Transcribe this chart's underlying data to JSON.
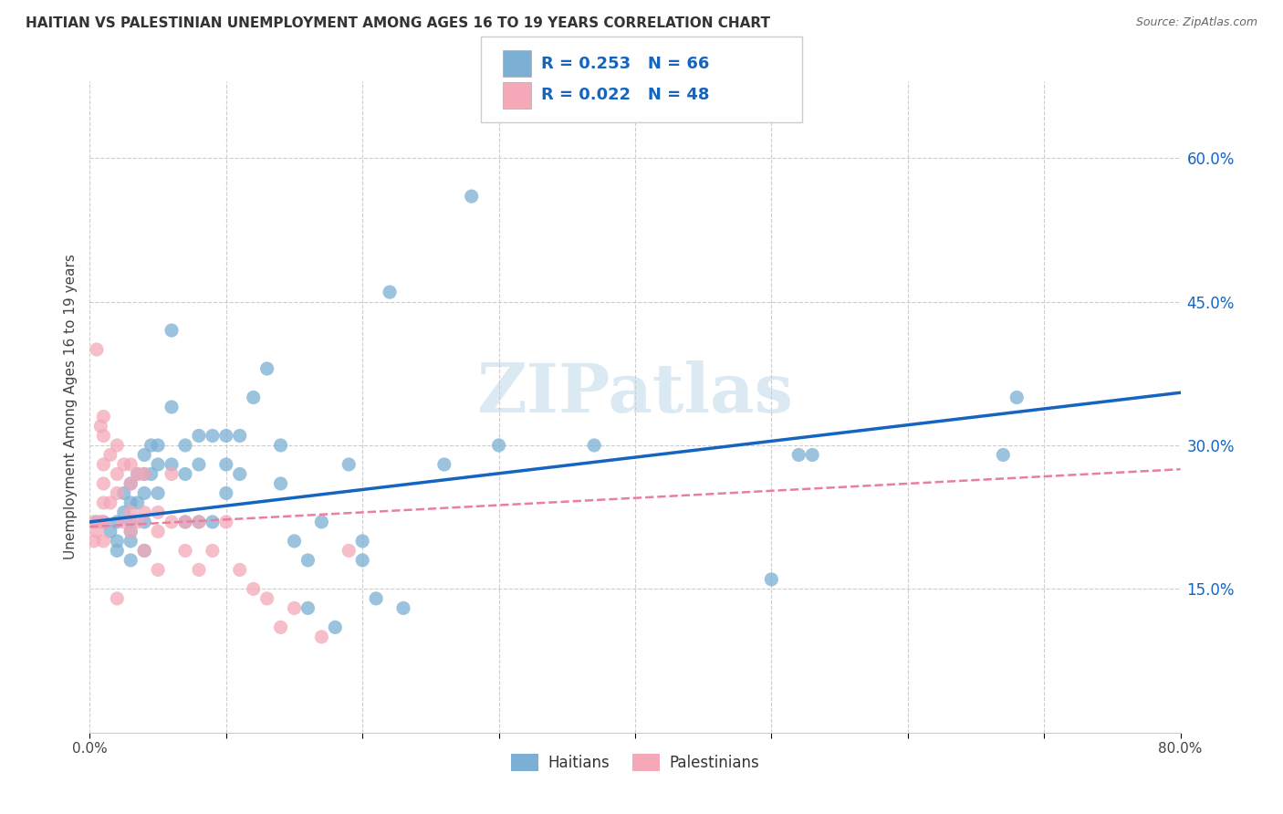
{
  "title": "HAITIAN VS PALESTINIAN UNEMPLOYMENT AMONG AGES 16 TO 19 YEARS CORRELATION CHART",
  "source": "Source: ZipAtlas.com",
  "ylabel": "Unemployment Among Ages 16 to 19 years",
  "xlim": [
    0.0,
    0.8
  ],
  "ylim": [
    0.0,
    0.68
  ],
  "xticks": [
    0.0,
    0.1,
    0.2,
    0.3,
    0.4,
    0.5,
    0.6,
    0.7,
    0.8
  ],
  "ytick_positions": [
    0.15,
    0.3,
    0.45,
    0.6
  ],
  "ytick_labels": [
    "15.0%",
    "30.0%",
    "45.0%",
    "60.0%"
  ],
  "haitians_color": "#7bafd4",
  "haitians_edge": "#5a9cc5",
  "palestinians_color": "#f4a8b8",
  "palestinians_edge": "#e07090",
  "haitians_line_color": "#1565c0",
  "palestinians_line_color": "#e87fa0",
  "haitians_R": 0.253,
  "haitians_N": 66,
  "palestinians_R": 0.022,
  "palestinians_N": 48,
  "watermark": "ZIPatlas",
  "background_color": "#ffffff",
  "grid_color": "#cccccc",
  "haitians_x": [
    0.005,
    0.01,
    0.015,
    0.02,
    0.02,
    0.02,
    0.025,
    0.025,
    0.03,
    0.03,
    0.03,
    0.03,
    0.03,
    0.03,
    0.035,
    0.035,
    0.04,
    0.04,
    0.04,
    0.04,
    0.04,
    0.045,
    0.045,
    0.05,
    0.05,
    0.05,
    0.06,
    0.06,
    0.06,
    0.07,
    0.07,
    0.07,
    0.08,
    0.08,
    0.08,
    0.09,
    0.09,
    0.1,
    0.1,
    0.1,
    0.11,
    0.11,
    0.12,
    0.13,
    0.14,
    0.14,
    0.15,
    0.16,
    0.16,
    0.17,
    0.18,
    0.19,
    0.2,
    0.2,
    0.21,
    0.22,
    0.23,
    0.26,
    0.28,
    0.3,
    0.37,
    0.5,
    0.52,
    0.53,
    0.67,
    0.68
  ],
  "haitians_y": [
    0.22,
    0.22,
    0.21,
    0.22,
    0.2,
    0.19,
    0.25,
    0.23,
    0.26,
    0.24,
    0.22,
    0.21,
    0.2,
    0.18,
    0.27,
    0.24,
    0.29,
    0.27,
    0.25,
    0.22,
    0.19,
    0.3,
    0.27,
    0.3,
    0.28,
    0.25,
    0.42,
    0.34,
    0.28,
    0.3,
    0.27,
    0.22,
    0.31,
    0.28,
    0.22,
    0.31,
    0.22,
    0.31,
    0.28,
    0.25,
    0.31,
    0.27,
    0.35,
    0.38,
    0.3,
    0.26,
    0.2,
    0.18,
    0.13,
    0.22,
    0.11,
    0.28,
    0.2,
    0.18,
    0.14,
    0.46,
    0.13,
    0.28,
    0.56,
    0.3,
    0.3,
    0.16,
    0.29,
    0.29,
    0.29,
    0.35
  ],
  "palestinians_x": [
    0.003,
    0.003,
    0.005,
    0.005,
    0.008,
    0.008,
    0.01,
    0.01,
    0.01,
    0.01,
    0.01,
    0.01,
    0.01,
    0.015,
    0.015,
    0.02,
    0.02,
    0.02,
    0.02,
    0.025,
    0.025,
    0.03,
    0.03,
    0.03,
    0.03,
    0.035,
    0.035,
    0.04,
    0.04,
    0.04,
    0.05,
    0.05,
    0.05,
    0.06,
    0.06,
    0.07,
    0.07,
    0.08,
    0.08,
    0.09,
    0.1,
    0.11,
    0.12,
    0.13,
    0.14,
    0.15,
    0.17,
    0.19
  ],
  "palestinians_y": [
    0.22,
    0.2,
    0.4,
    0.21,
    0.32,
    0.22,
    0.33,
    0.31,
    0.28,
    0.26,
    0.24,
    0.22,
    0.2,
    0.29,
    0.24,
    0.3,
    0.27,
    0.25,
    0.14,
    0.28,
    0.22,
    0.28,
    0.26,
    0.23,
    0.21,
    0.27,
    0.22,
    0.27,
    0.23,
    0.19,
    0.23,
    0.21,
    0.17,
    0.27,
    0.22,
    0.22,
    0.19,
    0.22,
    0.17,
    0.19,
    0.22,
    0.17,
    0.15,
    0.14,
    0.11,
    0.13,
    0.1,
    0.19
  ],
  "regression_haitians": [
    0.22,
    0.355
  ],
  "regression_palestinians": [
    0.215,
    0.275
  ]
}
